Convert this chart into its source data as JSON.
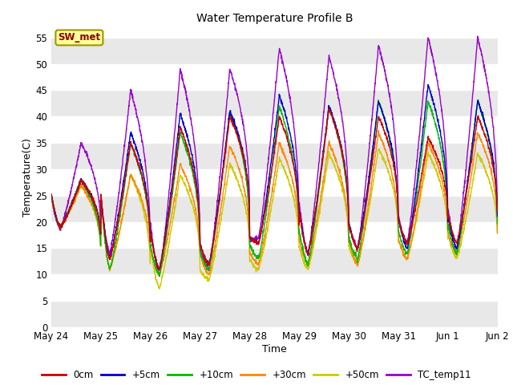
{
  "title": "Water Temperature Profile B",
  "xlabel": "Time",
  "ylabel": "Temperature(C)",
  "ylim": [
    0,
    57
  ],
  "yticks": [
    0,
    5,
    10,
    15,
    20,
    25,
    30,
    35,
    40,
    45,
    50,
    55
  ],
  "annotation_text": "SW_met",
  "annotation_color": "#8B0000",
  "annotation_bg": "#FFFF99",
  "annotation_border": "#999900",
  "series_colors": {
    "0cm": "#CC0000",
    "+5cm": "#0000CC",
    "+10cm": "#00BB00",
    "+30cm": "#FF8800",
    "+50cm": "#CCCC00",
    "TC_temp11": "#9900CC"
  },
  "bg_band_color": "#e8e8e8",
  "grid_color": "#ffffff",
  "fig_bg": "#ffffff",
  "plot_bg": "#ffffff"
}
